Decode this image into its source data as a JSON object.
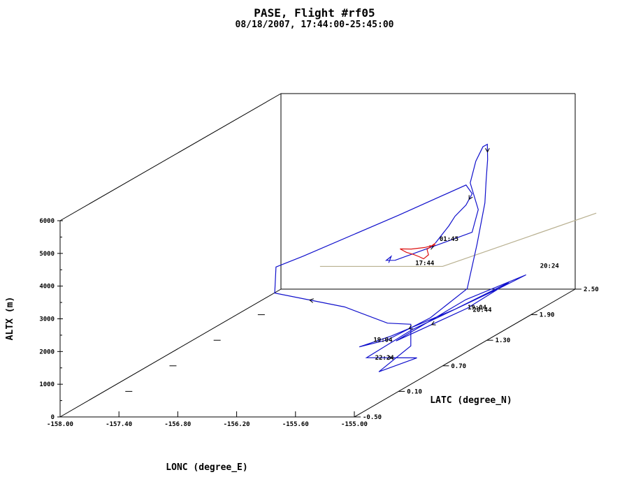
{
  "chart_data": {
    "type": "line",
    "title": "PASE, Flight #rf05",
    "subtitle": "08/18/2007, 17:44:00-25:45:00",
    "xlabel": "LONC (degree_E)",
    "ylabel": "LATC (degree_N)",
    "zlabel": "ALTX (m)",
    "xlim": [
      -158.0,
      -155.0
    ],
    "ylim": [
      -0.5,
      2.5
    ],
    "zlim": [
      0,
      6000
    ],
    "x_ticks": [
      "-158.00",
      "-157.40",
      "-156.80",
      "-156.20",
      "-155.60",
      "-155.00"
    ],
    "y_ticks": [
      "-0.50",
      "0.10",
      "0.70",
      "1.30",
      "1.90",
      "2.50"
    ],
    "z_ticks": [
      "0",
      "1000",
      "2000",
      "3000",
      "4000",
      "5000",
      "6000"
    ],
    "time_labels": [
      "17:44",
      "01:45",
      "19:04",
      "19:04",
      "20:24",
      "20:44",
      "22:24"
    ],
    "colors": {
      "track": "#1010cc",
      "track_end": "#dd1111",
      "box": "#000000",
      "ground_outline": "#b8b090"
    },
    "series": [
      {
        "color": "#1010cc",
        "points": [
          [
            -155.55,
            0.7,
            3150
          ],
          [
            -155.54,
            0.72,
            3320
          ],
          [
            -155.56,
            0.68,
            3250
          ],
          [
            -155.5,
            0.72,
            3200
          ],
          [
            -155.15,
            1.3,
            3300
          ],
          [
            -155.2,
            1.45,
            3800
          ],
          [
            -155.32,
            1.5,
            4550
          ],
          [
            -155.3,
            1.55,
            5150
          ],
          [
            -155.28,
            1.62,
            5500
          ],
          [
            -155.22,
            1.6,
            5600
          ],
          [
            -155.18,
            1.55,
            5200
          ],
          [
            -155.12,
            1.45,
            4700
          ],
          [
            -155.02,
            1.3,
            4200
          ],
          [
            -154.95,
            1.1,
            3200
          ],
          [
            -154.9,
            0.9,
            2100
          ],
          [
            -155.05,
            0.6,
            1600
          ],
          [
            -155.3,
            0.35,
            1250
          ],
          [
            -155.55,
            0.3,
            1100
          ],
          [
            -155.3,
            0.4,
            1300
          ],
          [
            -154.95,
            0.8,
            1600
          ],
          [
            -154.7,
            1.2,
            1900
          ],
          [
            -154.9,
            0.9,
            1500
          ],
          [
            -155.25,
            0.4,
            1150
          ],
          [
            -154.95,
            0.95,
            1700
          ],
          [
            -154.6,
            1.3,
            2000
          ],
          [
            -154.75,
            1.15,
            1800
          ],
          [
            -155.2,
            0.55,
            1300
          ],
          [
            -155.4,
            0.2,
            900
          ],
          [
            -155.0,
            0.35,
            700
          ],
          [
            -155.2,
            0.1,
            600
          ],
          [
            -155.1,
            0.4,
            1000
          ],
          [
            -155.25,
            0.6,
            1400
          ],
          [
            -155.45,
            0.55,
            1500
          ],
          [
            -156.0,
            0.7,
            1800
          ],
          [
            -156.9,
            0.95,
            1900
          ],
          [
            -157.0,
            1.1,
            2500
          ],
          [
            -156.8,
            1.2,
            2700
          ],
          [
            -156.2,
            1.7,
            3300
          ],
          [
            -155.7,
            1.95,
            3900
          ],
          [
            -155.6,
            1.9,
            3700
          ],
          [
            -155.55,
            1.75,
            3550
          ],
          [
            -155.55,
            1.6,
            3400
          ],
          [
            -155.5,
            1.45,
            3300
          ],
          [
            -155.45,
            1.2,
            3100
          ]
        ]
      },
      {
        "color": "#dd1111",
        "points": [
          [
            -155.45,
            1.2,
            3050
          ],
          [
            -155.52,
            1.15,
            3030
          ],
          [
            -155.62,
            1.1,
            3050
          ],
          [
            -155.72,
            1.08,
            3080
          ],
          [
            -155.64,
            1.06,
            3000
          ],
          [
            -155.55,
            1.04,
            2960
          ],
          [
            -155.48,
            1.02,
            2920
          ],
          [
            -155.42,
            1.0,
            2880
          ],
          [
            -155.4,
            1.04,
            2950
          ],
          [
            -155.46,
            1.1,
            3040
          ],
          [
            -155.45,
            1.2,
            3100
          ]
        ]
      }
    ]
  }
}
